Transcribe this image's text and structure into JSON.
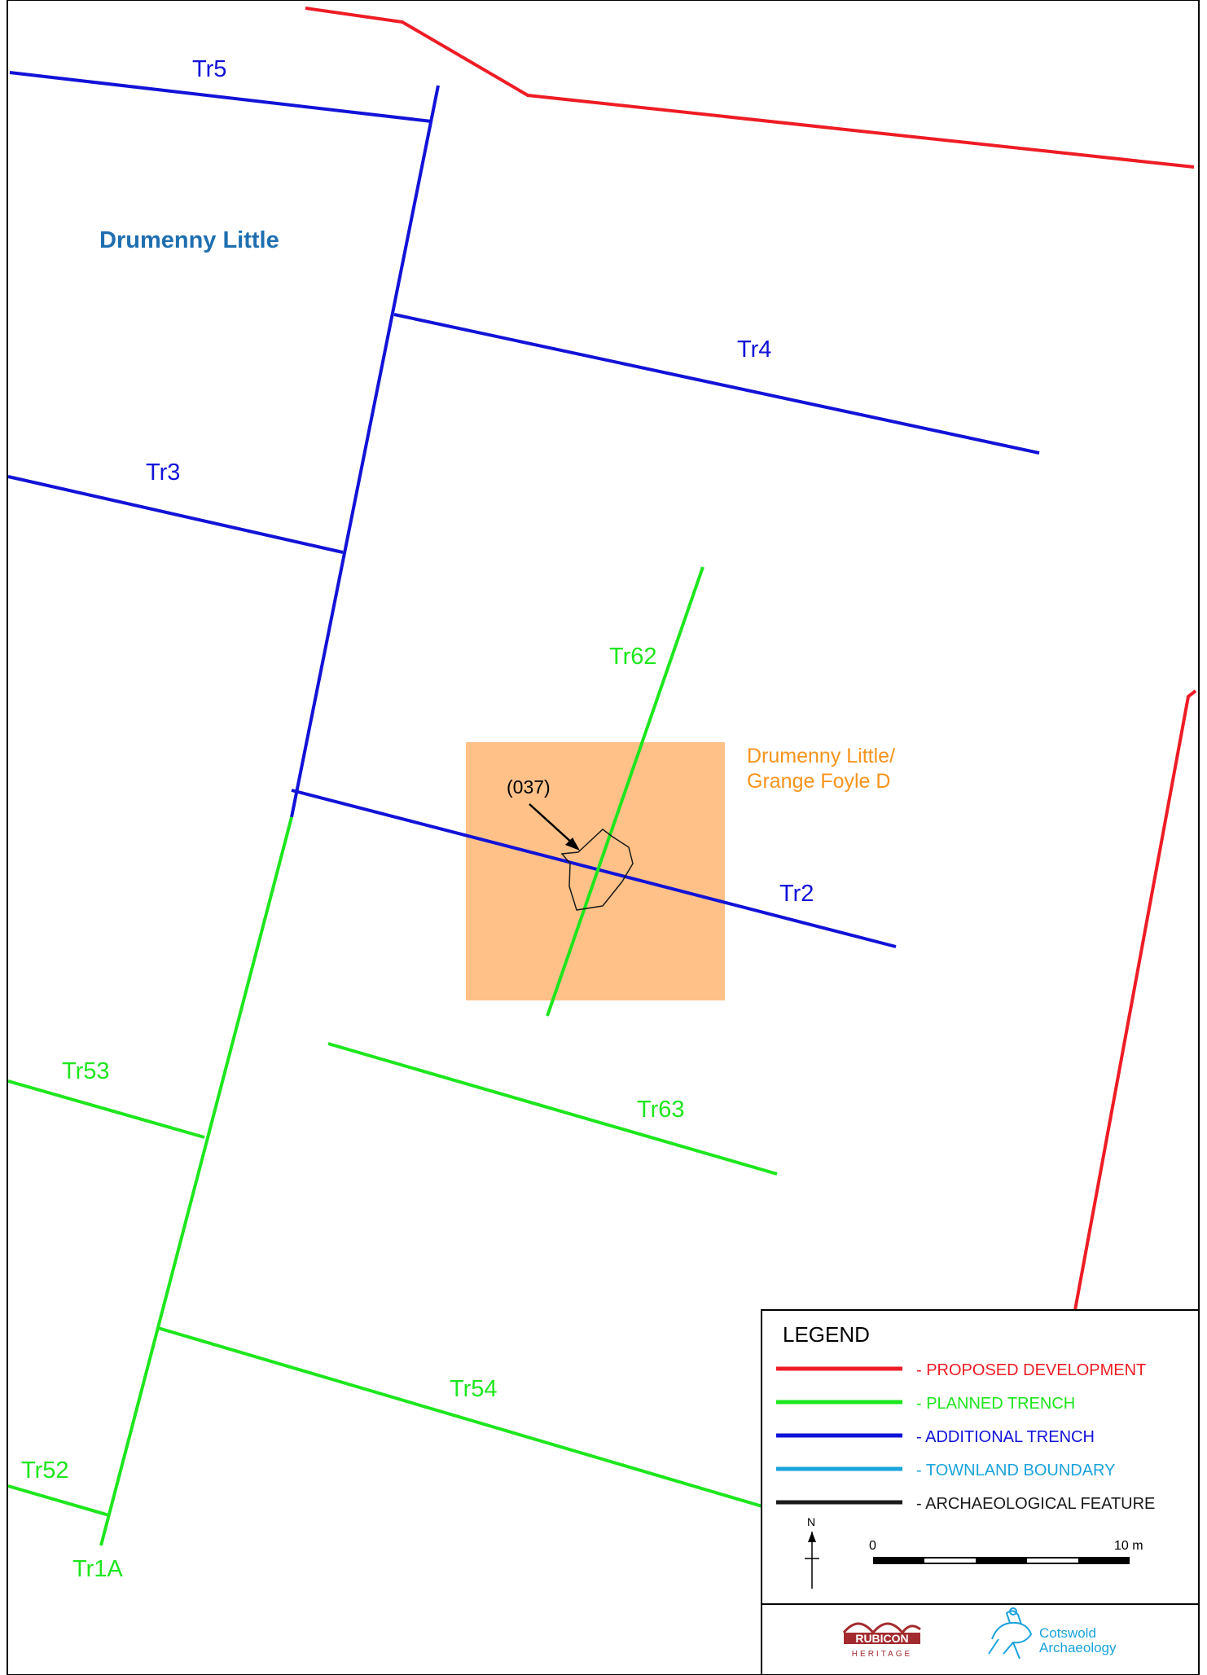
{
  "colors": {
    "proposed": "#ee1c25",
    "planned": "#1ee61e",
    "additional": "#1212d8",
    "townland": "#1aa3dc",
    "feature": "#1a1a1a",
    "site_fill": "#ffc187",
    "site_text": "#f7941d",
    "townland_text": "#1f6fb0"
  },
  "map": {
    "townland_name": "Drumenny Little",
    "site_label_line1": "Drumenny Little/",
    "site_label_line2": "Grange Foyle D",
    "feature_label": "(037)",
    "trenches": {
      "tr5": "Tr5",
      "tr4": "Tr4",
      "tr3": "Tr3",
      "tr2": "Tr2",
      "tr62": "Tr62",
      "tr63": "Tr63",
      "tr53": "Tr53",
      "tr54": "Tr54",
      "tr52": "Tr52",
      "tr1a": "Tr1A"
    }
  },
  "legend": {
    "title": "LEGEND",
    "items": [
      {
        "label": "- PROPOSED DEVELOPMENT",
        "color": "#ee1c25"
      },
      {
        "label": "- PLANNED TRENCH",
        "color": "#1ee61e"
      },
      {
        "label": "- ADDITIONAL TRENCH",
        "color": "#1212d8"
      },
      {
        "label": "- TOWNLAND BOUNDARY",
        "color": "#1aa3dc"
      },
      {
        "label": "- ARCHAEOLOGICAL FEATURE",
        "color": "#1a1a1a"
      }
    ],
    "north": "N",
    "scale_start": "0",
    "scale_end": "10 m"
  },
  "logos": {
    "rubicon_line1": "RUBICON",
    "rubicon_line2": "HERITAGE",
    "cotswold_line1": "Cotswold",
    "cotswold_line2": "Archaeology"
  }
}
